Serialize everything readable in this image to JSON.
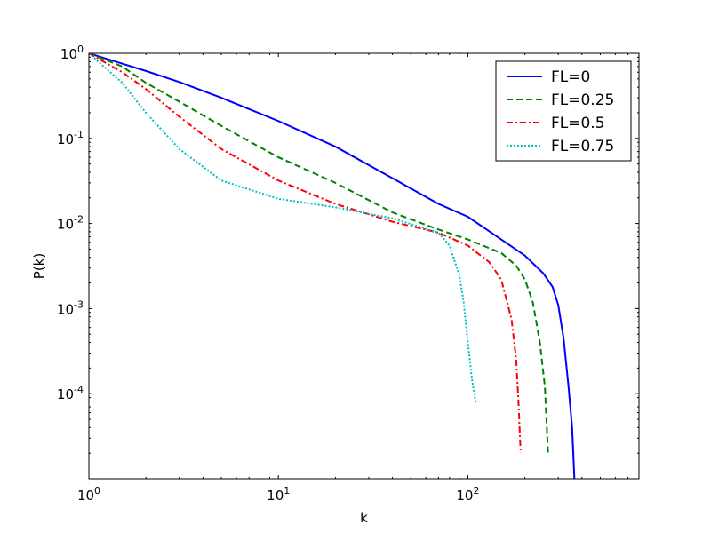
{
  "chart_data": {
    "type": "line",
    "xlabel": "k",
    "ylabel": "P(k)",
    "xscale": "log",
    "yscale": "log",
    "xlim": [
      1,
      800
    ],
    "ylim": [
      1e-05,
      1
    ],
    "x_ticks": [
      {
        "value": 1,
        "base": "10",
        "exp": "0"
      },
      {
        "value": 10,
        "base": "10",
        "exp": "1"
      },
      {
        "value": 100,
        "base": "10",
        "exp": "2"
      }
    ],
    "y_ticks": [
      {
        "value": 1,
        "base": "10",
        "exp": "0"
      },
      {
        "value": 0.1,
        "base": "10",
        "exp": "-1"
      },
      {
        "value": 0.01,
        "base": "10",
        "exp": "-2"
      },
      {
        "value": 0.001,
        "base": "10",
        "exp": "-3"
      },
      {
        "value": 0.0001,
        "base": "10",
        "exp": "-4"
      }
    ],
    "grid": false,
    "legend_position": "top-right",
    "series": [
      {
        "name": "FL=0",
        "color": "#0000ff",
        "style": "solid",
        "points": [
          [
            1,
            1
          ],
          [
            2,
            0.62
          ],
          [
            3,
            0.46
          ],
          [
            5,
            0.3
          ],
          [
            10,
            0.16
          ],
          [
            20,
            0.08
          ],
          [
            40,
            0.034
          ],
          [
            70,
            0.017
          ],
          [
            100,
            0.012
          ],
          [
            150,
            0.0065
          ],
          [
            200,
            0.0042
          ],
          [
            250,
            0.0026
          ],
          [
            280,
            0.0018
          ],
          [
            300,
            0.0011
          ],
          [
            320,
            0.00045
          ],
          [
            340,
            0.00012
          ],
          [
            355,
            4e-05
          ],
          [
            365,
            1e-05
          ]
        ]
      },
      {
        "name": "FL=0.25",
        "color": "#008000",
        "style": "dashed",
        "points": [
          [
            1,
            1
          ],
          [
            1.5,
            0.7
          ],
          [
            2,
            0.45
          ],
          [
            3,
            0.27
          ],
          [
            5,
            0.14
          ],
          [
            10,
            0.06
          ],
          [
            20,
            0.03
          ],
          [
            40,
            0.0135
          ],
          [
            70,
            0.0085
          ],
          [
            100,
            0.0065
          ],
          [
            150,
            0.0045
          ],
          [
            180,
            0.0032
          ],
          [
            200,
            0.0022
          ],
          [
            220,
            0.0012
          ],
          [
            240,
            0.0004
          ],
          [
            255,
            0.00012
          ],
          [
            265,
            2e-05
          ]
        ]
      },
      {
        "name": "FL=0.5",
        "color": "#ff0000",
        "style": "dash-dot",
        "points": [
          [
            1,
            1
          ],
          [
            1.5,
            0.6
          ],
          [
            2,
            0.38
          ],
          [
            3,
            0.18
          ],
          [
            5,
            0.075
          ],
          [
            10,
            0.032
          ],
          [
            20,
            0.017
          ],
          [
            40,
            0.0105
          ],
          [
            70,
            0.0078
          ],
          [
            100,
            0.0055
          ],
          [
            130,
            0.0035
          ],
          [
            150,
            0.0022
          ],
          [
            170,
            0.00075
          ],
          [
            180,
            0.00025
          ],
          [
            185,
            8e-05
          ],
          [
            190,
            2e-05
          ]
        ]
      },
      {
        "name": "FL=0.75",
        "color": "#00bfbf",
        "style": "dotted",
        "points": [
          [
            1,
            1
          ],
          [
            1.5,
            0.45
          ],
          [
            2,
            0.2
          ],
          [
            3,
            0.075
          ],
          [
            5,
            0.032
          ],
          [
            10,
            0.0195
          ],
          [
            20,
            0.0155
          ],
          [
            40,
            0.0115
          ],
          [
            70,
            0.0078
          ],
          [
            80,
            0.0055
          ],
          [
            90,
            0.0025
          ],
          [
            95,
            0.0012
          ],
          [
            100,
            0.0004
          ],
          [
            105,
            0.00015
          ],
          [
            110,
            8e-05
          ]
        ]
      }
    ]
  }
}
